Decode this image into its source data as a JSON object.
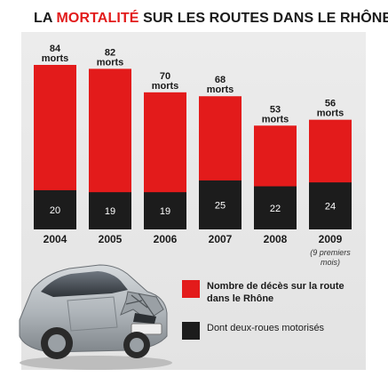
{
  "title": {
    "prefix": "LA",
    "highlight": "MORTALITÉ",
    "rest": "SUR LES ROUTES DANS LE RHÔNE"
  },
  "colors": {
    "total": "#e31b1b",
    "moto": "#1c1c1c",
    "accent": "#e21b1b"
  },
  "chart_data": {
    "type": "bar",
    "categories": [
      "2004",
      "2005",
      "2006",
      "2007",
      "2008",
      "2009"
    ],
    "category_notes": [
      "",
      "",
      "",
      "",
      "",
      "(9 premiers mois)"
    ],
    "series": [
      {
        "name": "Nombre de décès sur la route dans le Rhône",
        "values": [
          84,
          82,
          70,
          68,
          53,
          56
        ]
      },
      {
        "name": "Dont deux-roues motorisés",
        "values": [
          20,
          19,
          19,
          25,
          22,
          24
        ]
      }
    ],
    "value_unit": "morts",
    "ylim": [
      0,
      84
    ],
    "grid": false,
    "legend_position": "bottom-right"
  },
  "legend": {
    "total_label": "Nombre de décès sur la route dans le Rhône",
    "moto_label": "Dont deux-roues motorisés"
  },
  "illustration": {
    "icon": "crashed-car-icon"
  }
}
